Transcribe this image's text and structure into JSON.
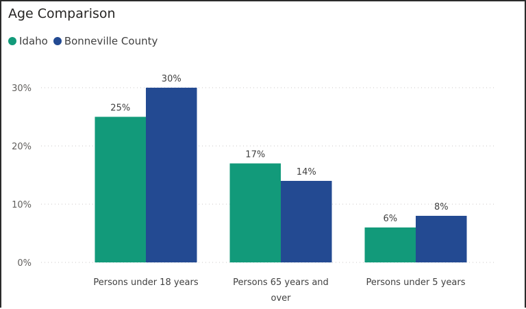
{
  "chart_data": {
    "type": "bar",
    "title": "Age Comparison",
    "categories": [
      [
        "Persons under 18 years"
      ],
      [
        "Persons 65 years and",
        "over"
      ],
      [
        "Persons under 5 years"
      ]
    ],
    "series": [
      {
        "name": "Idaho",
        "color": "#129a7a",
        "values": [
          25,
          17,
          6
        ],
        "labels": [
          "25%",
          "17%",
          "6%"
        ]
      },
      {
        "name": "Bonneville County",
        "color": "#234a92",
        "values": [
          30,
          14,
          8
        ],
        "labels": [
          "30%",
          "14%",
          "8%"
        ]
      }
    ],
    "yticks": [
      0,
      10,
      20,
      30
    ],
    "ytick_labels": [
      "0%",
      "10%",
      "20%",
      "30%"
    ],
    "ylim": [
      0,
      30
    ],
    "xlabel": "",
    "ylabel": "",
    "grid": true,
    "legend_position": "top-left"
  }
}
